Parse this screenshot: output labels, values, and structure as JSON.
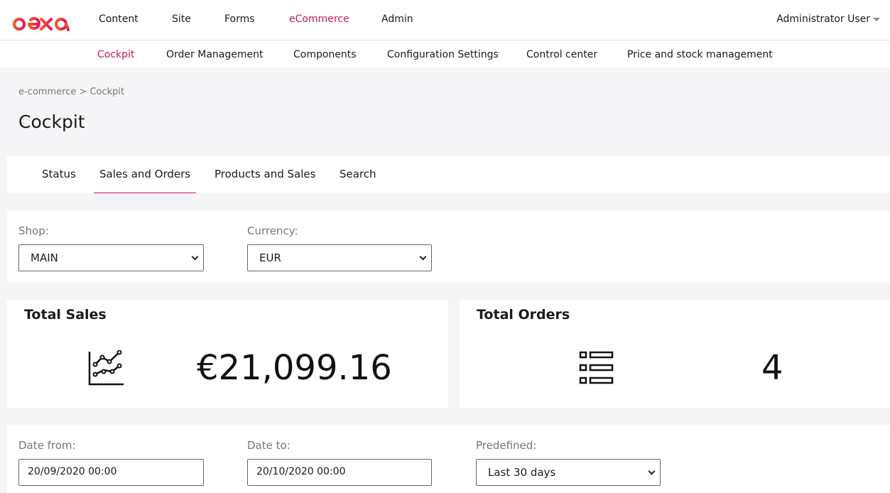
{
  "brand": {
    "logo_text": "ibexa",
    "color": "#e8304e"
  },
  "top_nav": [
    "Content",
    "Site",
    "Forms",
    "eCommerce",
    "Admin"
  ],
  "user": "Administrator User",
  "sub_nav": [
    "Cockpit",
    "Order Management",
    "Components",
    "Configuration Settings",
    "Control center",
    "Price and stock management"
  ],
  "breadcrumb": "e-commerce > Cockpit",
  "title": "Cockpit",
  "tabs": [
    "Status",
    "Sales and Orders",
    "Products and Sales",
    "Search"
  ],
  "filters": {
    "shop_label": "Shop:",
    "shop": "MAIN",
    "currency_label": "Currency:",
    "currency": "EUR"
  },
  "total_sales": {
    "label": "Total Sales",
    "value": "€21,099.16",
    "icon": "chart-line-icon"
  },
  "total_orders": {
    "label": "Total Orders",
    "value": "4",
    "icon": "list-icon"
  },
  "dates": {
    "from_label": "Date from:",
    "from": "20/09/2020 00:00",
    "to_label": "Date to:",
    "to": "20/10/2020 00:00",
    "predefined_label": "Predefined:",
    "predefined": "Last 30 days"
  },
  "accent": "#c5165b"
}
